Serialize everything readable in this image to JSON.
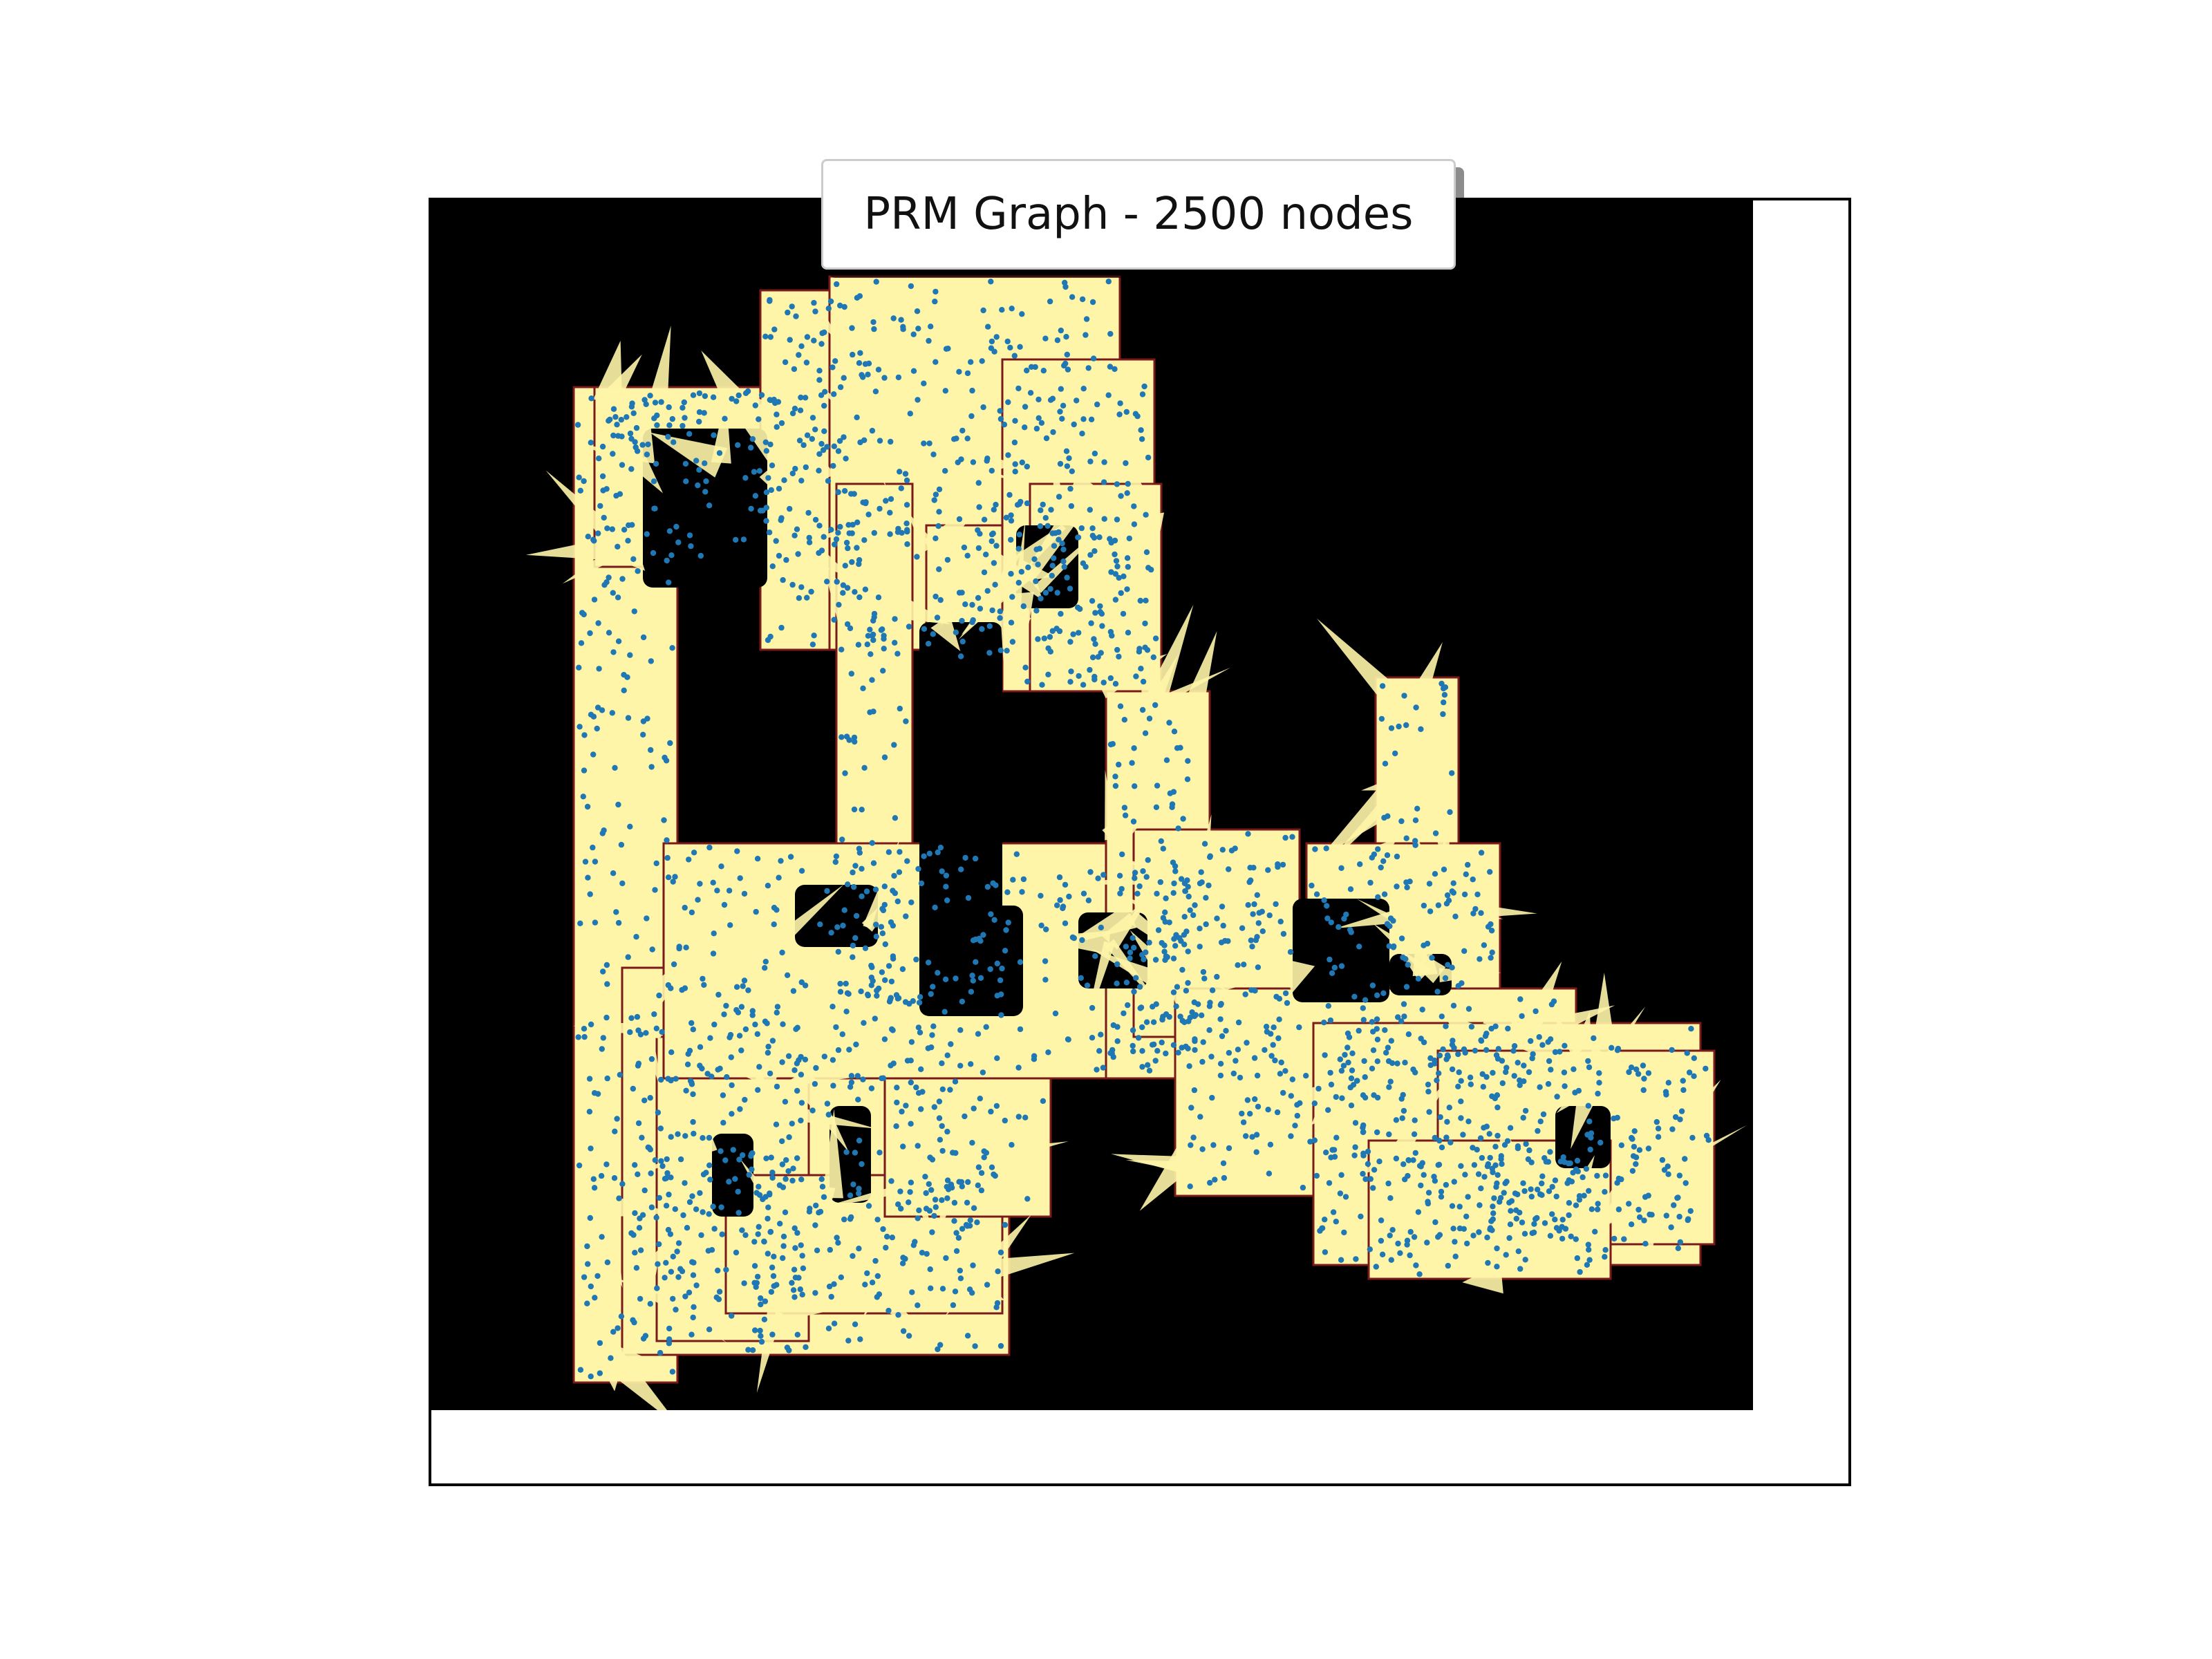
{
  "chart_data": {
    "type": "scatter",
    "title": "",
    "xlabel": "",
    "ylabel": "",
    "grid": false,
    "axes_visible": false,
    "background": "occupancy map image",
    "legend": {
      "label": "PRM Graph - 2500 nodes",
      "placement": "top-center"
    },
    "series": [
      {
        "name": "PRM Graph - 2500 nodes",
        "node_count": 2500,
        "color": "#1f77b4"
      }
    ],
    "colors": {
      "map_obstacle": "#000000",
      "map_free": "#fff5a8",
      "map_edge": "#7a1a1a",
      "nodes": "#1f77b4",
      "frame": "#000000"
    }
  }
}
